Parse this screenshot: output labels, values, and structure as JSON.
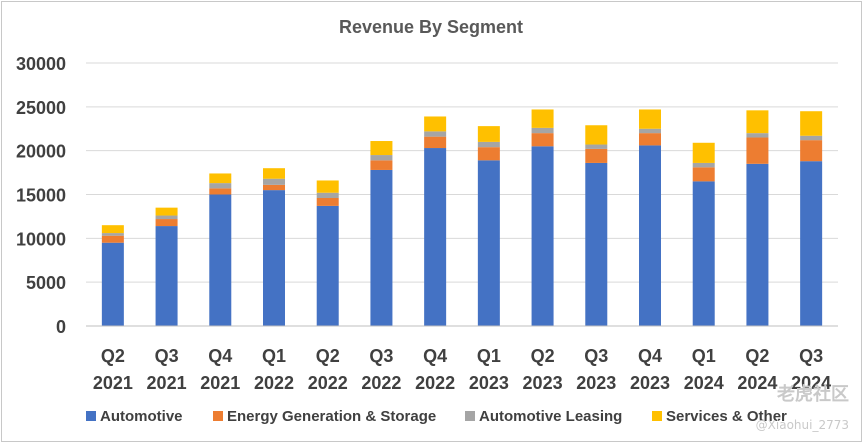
{
  "chart_data": {
    "type": "bar",
    "stacked": true,
    "title": "Revenue By Segment",
    "xlabel": "",
    "ylabel": "",
    "ylim": [
      0,
      30000
    ],
    "yticks": [
      0,
      5000,
      10000,
      15000,
      20000,
      25000,
      30000
    ],
    "grid": true,
    "legend_position": "bottom",
    "categories": [
      [
        "Q2",
        "2021"
      ],
      [
        "Q3",
        "2021"
      ],
      [
        "Q4",
        "2021"
      ],
      [
        "Q1",
        "2022"
      ],
      [
        "Q2",
        "2022"
      ],
      [
        "Q3",
        "2022"
      ],
      [
        "Q4",
        "2022"
      ],
      [
        "Q1",
        "2023"
      ],
      [
        "Q2",
        "2023"
      ],
      [
        "Q3",
        "2023"
      ],
      [
        "Q4",
        "2023"
      ],
      [
        "Q1",
        "2024"
      ],
      [
        "Q2",
        "2024"
      ],
      [
        "Q3",
        "2024"
      ]
    ],
    "series": [
      {
        "name": "Automotive",
        "color": "#4472C4",
        "values": [
          9500,
          11400,
          15000,
          15500,
          13700,
          17800,
          20300,
          18900,
          20500,
          18600,
          20600,
          16500,
          18500,
          18800
        ]
      },
      {
        "name": "Energy Generation & Storage",
        "color": "#ED7D31",
        "values": [
          800,
          800,
          700,
          600,
          900,
          1100,
          1300,
          1500,
          1500,
          1600,
          1400,
          1600,
          3000,
          2400
        ]
      },
      {
        "name": "Automotive Leasing",
        "color": "#A5A5A5",
        "values": [
          300,
          400,
          600,
          700,
          600,
          600,
          600,
          600,
          600,
          500,
          500,
          500,
          500,
          500
        ]
      },
      {
        "name": "Services & Other",
        "color": "#FFC000",
        "values": [
          900,
          900,
          1100,
          1200,
          1400,
          1600,
          1700,
          1800,
          2100,
          2200,
          2200,
          2300,
          2600,
          2800
        ]
      }
    ]
  },
  "watermark": {
    "logo": "老虎社区",
    "user": "@Xiaohui_2773"
  }
}
